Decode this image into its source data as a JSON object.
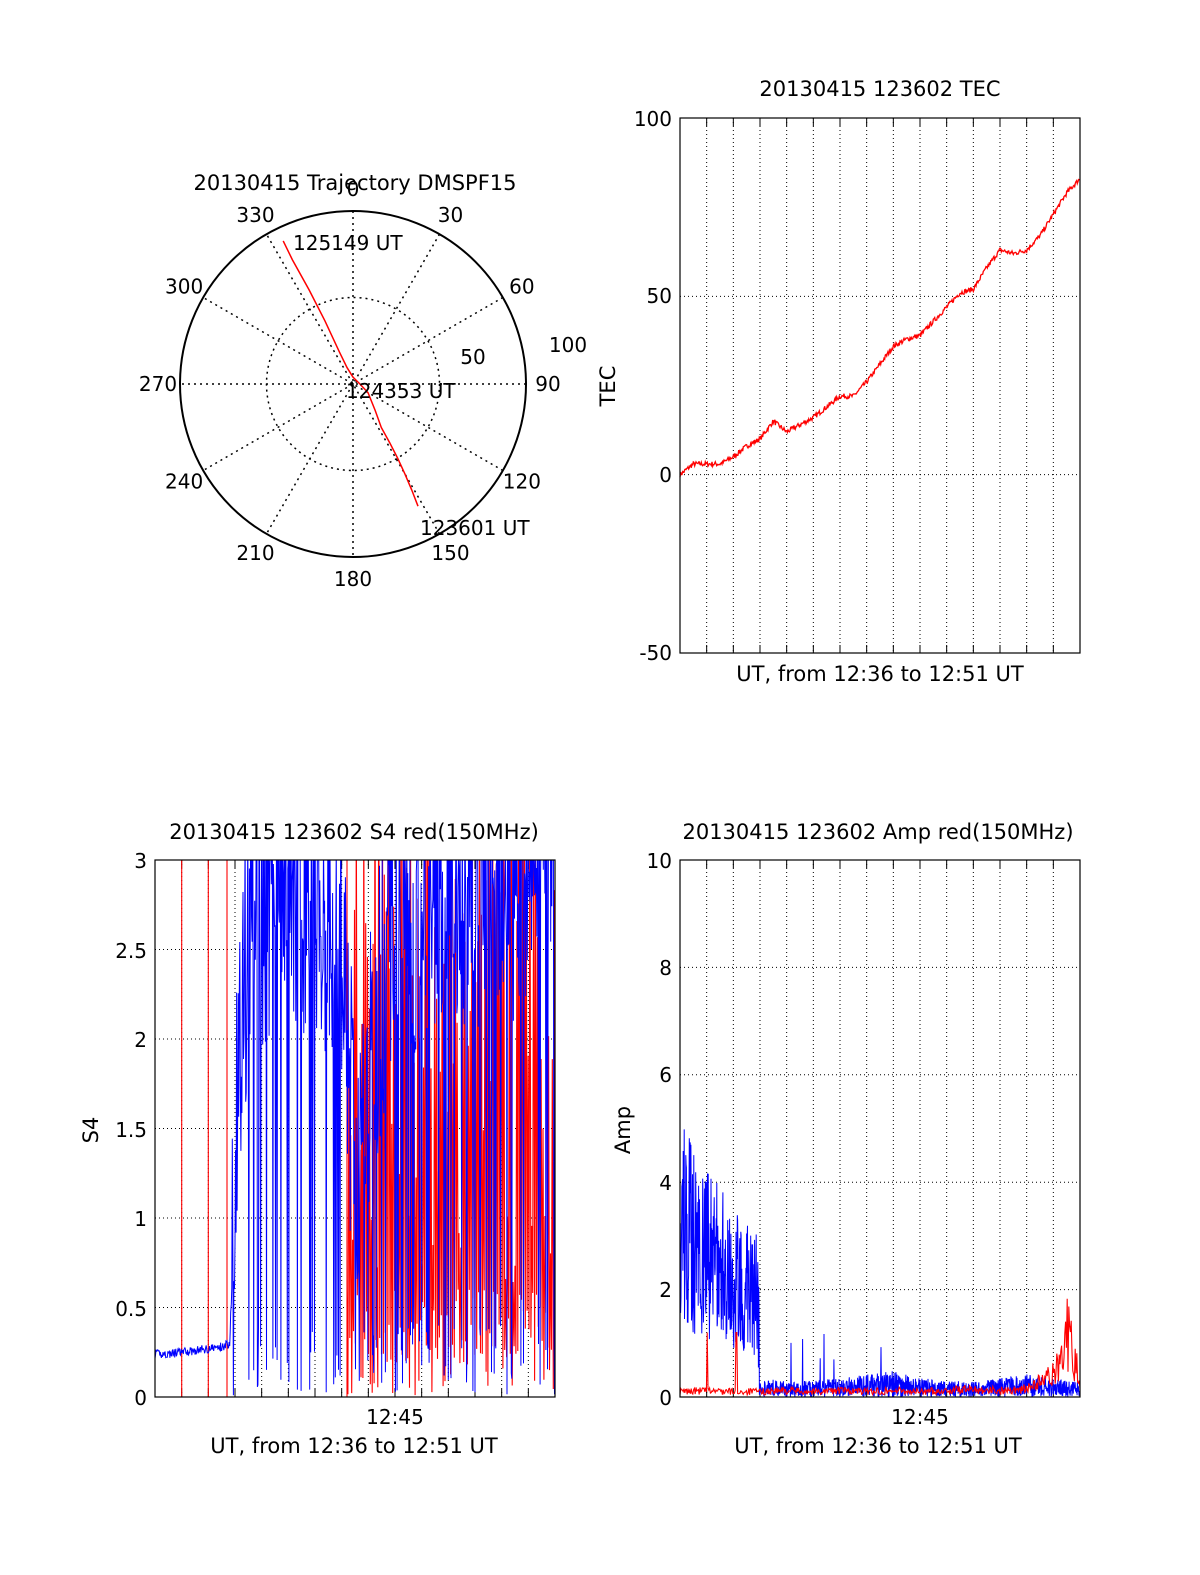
{
  "colors": {
    "red": "#ff0000",
    "blue": "#0000ff",
    "axis": "#000000",
    "grid": "#000000",
    "background": "#ffffff"
  },
  "chart_data": [
    {
      "type": "polar",
      "title": "20130415 Trajectory DMSPF15",
      "azimuth_labels": [
        "0",
        "30",
        "60",
        "90",
        "120",
        "150",
        "180",
        "210",
        "240",
        "270",
        "300",
        "330"
      ],
      "radial_labels": [
        "50",
        "100"
      ],
      "radial_range": [
        0,
        100
      ],
      "grid": true,
      "series": [
        {
          "color": "#ff0000",
          "azimuth_deg": [
            152,
            151,
            150,
            149,
            148,
            147,
            140,
            120,
            90,
            0,
            340,
            337,
            336,
            335,
            334,
            334
          ],
          "range": [
            80,
            70,
            60,
            50,
            40,
            30,
            20,
            10,
            4,
            4,
            10,
            20,
            40,
            60,
            80,
            92
          ]
        }
      ],
      "annotations": [
        "125149 UT",
        "124353 UT",
        "123601 UT"
      ]
    },
    {
      "type": "line",
      "title": "20130415 123602 TEC",
      "xlabel": "UT, from 12:36 to 12:51 UT",
      "ylabel": "TEC",
      "xlim": [
        0,
        15
      ],
      "ylim": [
        -50,
        100
      ],
      "yticks": [
        "100",
        "50",
        "0",
        "-50"
      ],
      "grid": true,
      "series": [
        {
          "color": "#ff0000",
          "x": [
            0,
            0.5,
            1,
            1.5,
            2,
            2.5,
            3,
            3.5,
            4,
            4.5,
            5,
            5.5,
            6,
            6.5,
            7,
            7.5,
            8,
            8.5,
            9,
            9.5,
            10,
            10.5,
            11,
            11.5,
            12,
            12.5,
            13,
            13.5,
            14,
            14.5,
            15
          ],
          "y": [
            0,
            3,
            3,
            3,
            5,
            8,
            10,
            15,
            12,
            14,
            16,
            19,
            22,
            22,
            26,
            31,
            36,
            38,
            39,
            43,
            47,
            51,
            52,
            58,
            63,
            62,
            63,
            67,
            73,
            79,
            83
          ]
        }
      ]
    },
    {
      "type": "line",
      "title": "20130415 123602 S4 red(150MHz)",
      "xlabel": "UT, from 12:36 to 12:51 UT",
      "ylabel": "S4",
      "xlim": [
        0,
        15
      ],
      "ylim": [
        0,
        3
      ],
      "xticks": [
        {
          "value": 9,
          "label": "12:45"
        }
      ],
      "yticks": [
        "3",
        "2.5",
        "2",
        "1.5",
        "1",
        "0.5",
        "0"
      ],
      "grid": true,
      "series": [
        {
          "color": "#0000ff",
          "x": [
            0,
            0.5,
            1,
            1.5,
            2,
            2.5,
            2.8,
            3,
            3.3,
            3.6,
            4,
            4.5,
            5,
            5.5,
            6,
            6.5,
            7,
            7.3,
            7.6,
            8,
            9,
            10,
            11,
            12,
            13,
            14,
            15
          ],
          "y": [
            0.24,
            0.24,
            0.25,
            0.26,
            0.27,
            0.28,
            0.3,
            1.1,
            2.0,
            2.6,
            2.4,
            2.7,
            2.8,
            2.5,
            2.6,
            2.4,
            2.2,
            1.5,
            0.9,
            1.6,
            2.4,
            2.5,
            2.7,
            2.6,
            2.5,
            2.8,
            2.9
          ]
        },
        {
          "color": "#ff0000",
          "spikes_x": [
            1.0,
            2.0,
            2.7,
            7.2
          ],
          "dense_range_x": [
            7.2,
            15
          ],
          "baseline": 0,
          "peak": 3
        }
      ]
    },
    {
      "type": "line",
      "title": "20130415 123602 Amp red(150MHz)",
      "xlabel": "UT, from 12:36 to 12:51 UT",
      "ylabel": "Amp",
      "xlim": [
        0,
        15
      ],
      "ylim": [
        0,
        10
      ],
      "xticks": [
        {
          "value": 9,
          "label": "12:45"
        }
      ],
      "yticks": [
        "10",
        "8",
        "6",
        "4",
        "2",
        "0"
      ],
      "grid": true,
      "series": [
        {
          "color": "#0000ff",
          "x": [
            0,
            0.3,
            0.6,
            1,
            1.5,
            2,
            2.5,
            2.9,
            3.0,
            3.5,
            4,
            5,
            6,
            7,
            8,
            9,
            10,
            11,
            12,
            13,
            14,
            15
          ],
          "y": [
            5.2,
            5.0,
            4.6,
            4.3,
            3.9,
            3.6,
            3.3,
            3.0,
            0.2,
            0.25,
            0.2,
            0.22,
            0.25,
            0.3,
            0.35,
            0.25,
            0.22,
            0.2,
            0.25,
            0.3,
            0.25,
            0.2
          ]
        },
        {
          "color": "#ff0000",
          "x": [
            0,
            1,
            2,
            3,
            4,
            5,
            6,
            7,
            8,
            9,
            10,
            11,
            12,
            13,
            14,
            14.5,
            15
          ],
          "y": [
            0.1,
            0.12,
            0.1,
            0.1,
            0.12,
            0.1,
            0.12,
            0.1,
            0.12,
            0.1,
            0.12,
            0.15,
            0.12,
            0.15,
            0.4,
            1.2,
            0.3
          ]
        }
      ]
    }
  ]
}
